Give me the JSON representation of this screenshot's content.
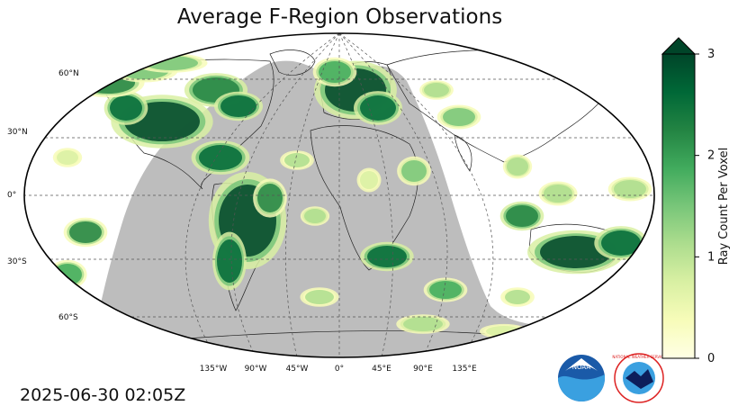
{
  "title": "Average F-Region Observations",
  "timestamp": "2025-06-30 02:05Z",
  "map": {
    "projection": "robinson",
    "lon_labels": [
      "135°W",
      "90°W",
      "45°W",
      "0°",
      "45°E",
      "90°E",
      "135°E"
    ],
    "lat_labels": [
      "60°N",
      "30°N",
      "0°",
      "30°S",
      "60°S"
    ],
    "night_color": "#bdbdbd",
    "gridline_style": "dashed"
  },
  "colorbar": {
    "label": "Ray Count Per Voxel",
    "ticks": [
      "0",
      "1",
      "2",
      "3"
    ],
    "min": 0,
    "max": 3,
    "extend": "max",
    "colors": [
      "#ffffe5",
      "#f7fcb9",
      "#d9f0a3",
      "#addd8e",
      "#78c679",
      "#41ab5d",
      "#238443",
      "#006837",
      "#004529"
    ]
  },
  "logos": {
    "noaa": "NOAA",
    "nws": "NATIONAL WEATHER SERVICE"
  }
}
